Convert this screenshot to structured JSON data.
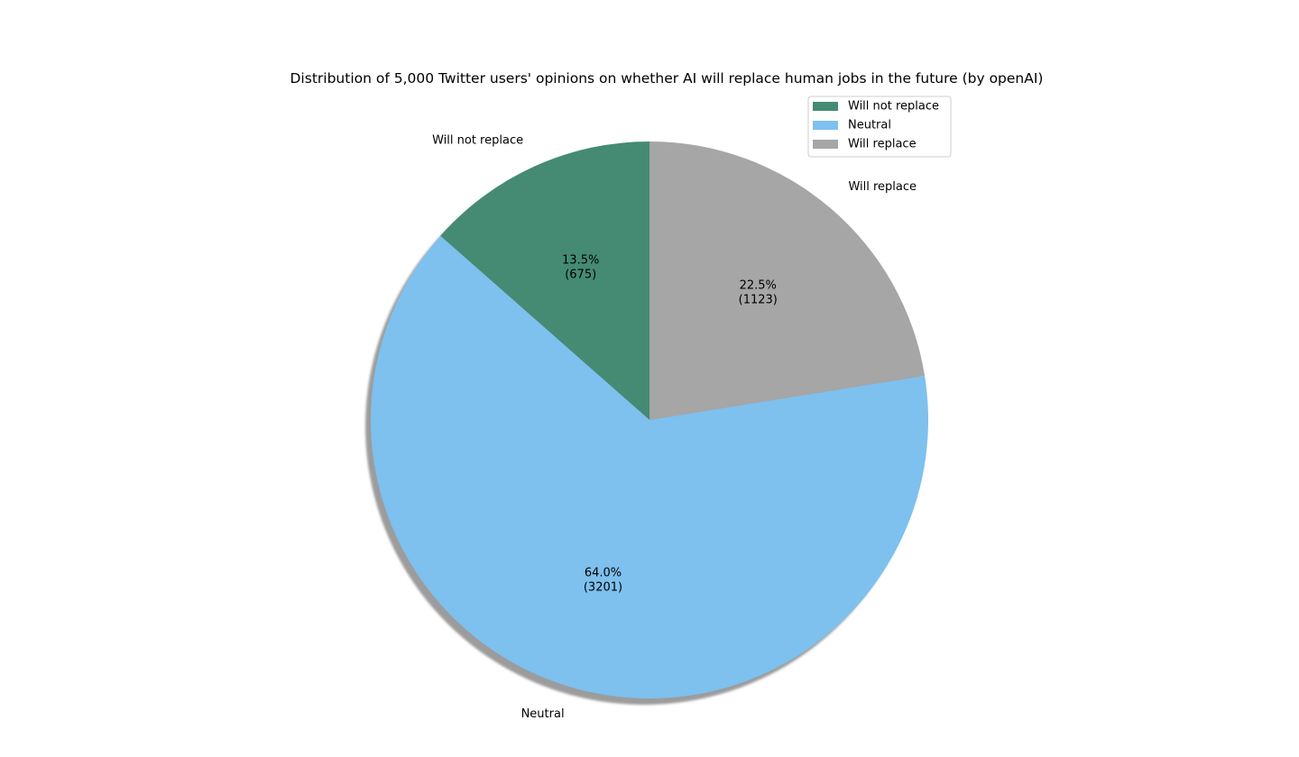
{
  "chart_data": {
    "type": "pie",
    "title": "Distribution of 5,000 Twitter users' opinions on whether AI will replace human jobs in the future (by openAI)",
    "categories": [
      "Will not replace",
      "Neutral",
      "Will replace"
    ],
    "values": [
      675,
      3201,
      1123
    ],
    "percent_labels": [
      "13.5%",
      "64.0%",
      "22.5%"
    ],
    "count_labels": [
      "(675)",
      "(3201)",
      "(1123)"
    ],
    "colors": [
      "#458b74",
      "#7ec0ee",
      "#a6a6a6"
    ],
    "start_angle_deg": 90,
    "direction": "counterclockwise",
    "shadow": true,
    "legend": {
      "placement": "upper-right",
      "entries": [
        "Will not replace",
        "Neutral",
        "Will replace"
      ]
    }
  }
}
